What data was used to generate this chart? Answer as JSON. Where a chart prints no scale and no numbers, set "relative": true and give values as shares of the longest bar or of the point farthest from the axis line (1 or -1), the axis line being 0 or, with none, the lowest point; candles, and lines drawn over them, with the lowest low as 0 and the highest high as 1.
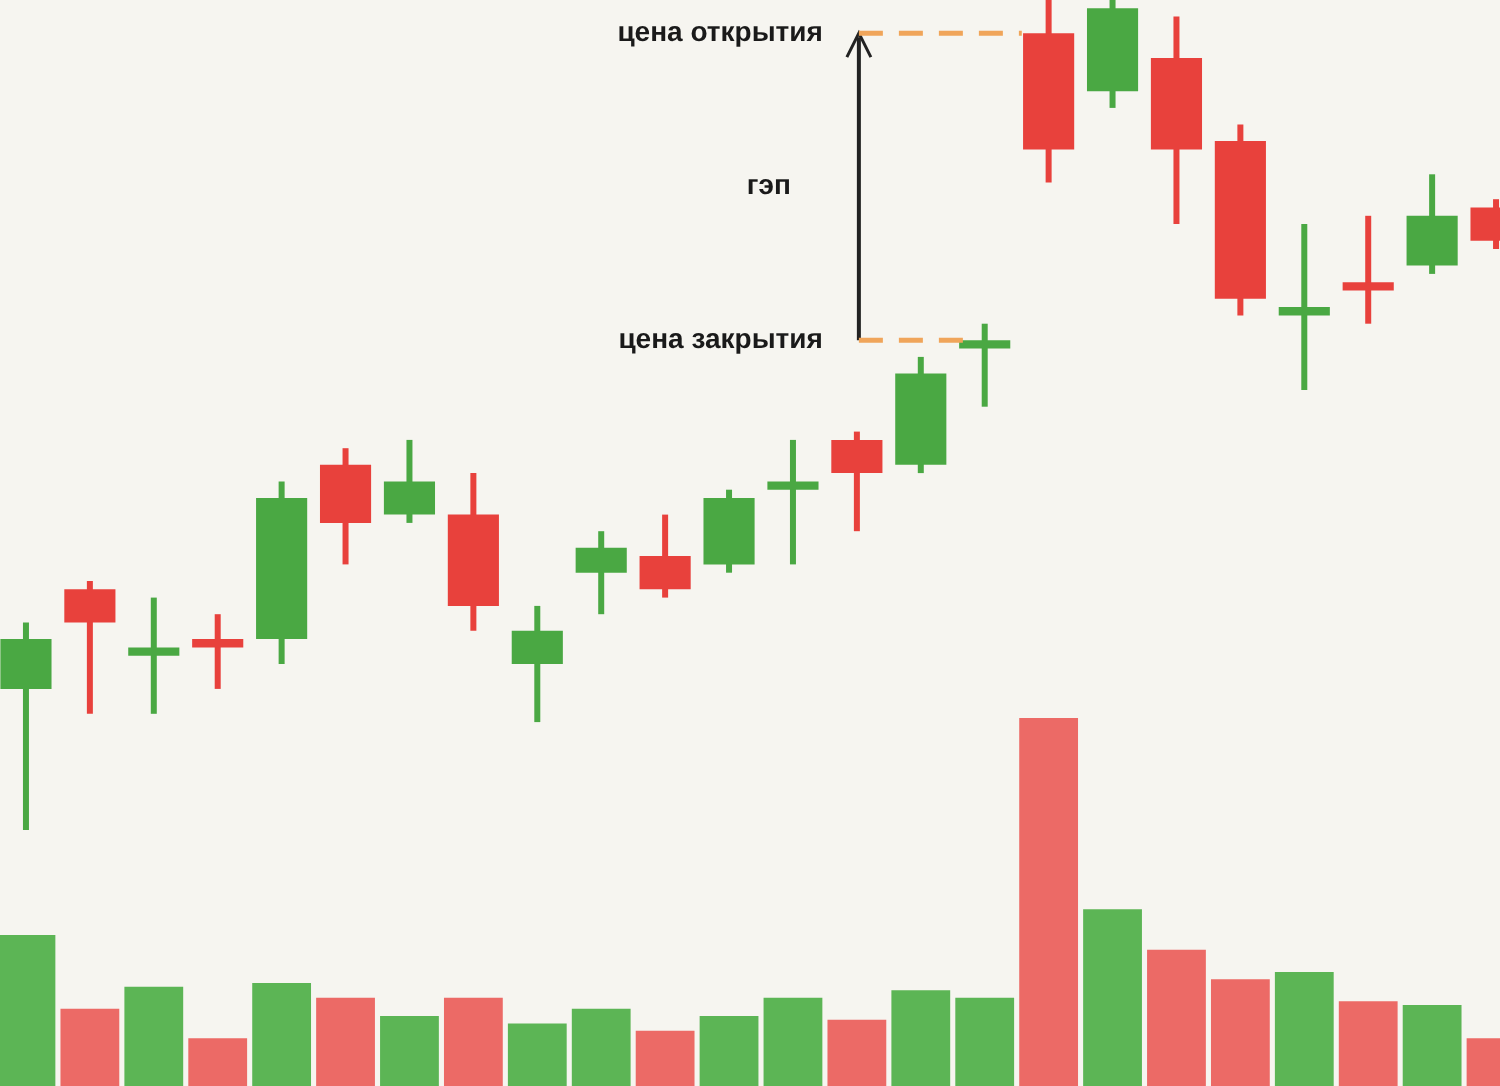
{
  "chart_data": [
    {
      "type": "candlestick",
      "relative": true,
      "categories": [
        null,
        null,
        null,
        null,
        null,
        null,
        null,
        null,
        null,
        null,
        null,
        null,
        null,
        null,
        null,
        null,
        null,
        null,
        null,
        null,
        null,
        null,
        null,
        null
      ],
      "ohlc": [
        [
          0.17,
          0.25,
          0,
          0.23
        ],
        [
          0.29,
          0.3,
          0.14,
          0.25
        ],
        [
          0.21,
          0.28,
          0.14,
          0.22
        ],
        [
          0.23,
          0.26,
          0.17,
          0.22
        ],
        [
          0.23,
          0.42,
          0.2,
          0.4
        ],
        [
          0.44,
          0.46,
          0.32,
          0.37
        ],
        [
          0.38,
          0.47,
          0.37,
          0.42
        ],
        [
          0.38,
          0.43,
          0.24,
          0.27
        ],
        [
          0.2,
          0.27,
          0.13,
          0.24
        ],
        [
          0.31,
          0.36,
          0.26,
          0.34
        ],
        [
          0.33,
          0.38,
          0.28,
          0.29
        ],
        [
          0.32,
          0.41,
          0.31,
          0.4
        ],
        [
          0.41,
          0.47,
          0.32,
          0.42
        ],
        [
          0.47,
          0.48,
          0.36,
          0.43
        ],
        [
          0.44,
          0.57,
          0.43,
          0.55
        ],
        [
          0.58,
          0.61,
          0.51,
          0.59
        ],
        [
          0.96,
          1,
          0.78,
          0.82
        ],
        [
          0.89,
          1,
          0.87,
          0.99
        ],
        [
          0.93,
          0.98,
          0.73,
          0.82
        ],
        [
          0.83,
          0.85,
          0.62,
          0.64
        ],
        [
          0.62,
          0.73,
          0.53,
          0.63
        ],
        [
          0.66,
          0.74,
          0.61,
          0.65
        ],
        [
          0.68,
          0.79,
          0.67,
          0.74
        ],
        [
          0.75,
          0.76,
          0.7,
          0.71
        ]
      ],
      "colors": [
        "#4aa843",
        "#e8413c",
        "#4aa843",
        "#e8413c",
        "#4aa843",
        "#e8413c",
        "#4aa843",
        "#e8413c",
        "#4aa843",
        "#4aa843",
        "#e8413c",
        "#4aa843",
        "#4aa843",
        "#e8413c",
        "#4aa843",
        "#4aa843",
        "#e8413c",
        "#4aa843",
        "#e8413c",
        "#e8413c",
        "#4aa843",
        "#e8413c",
        "#4aa843",
        "#e8413c"
      ],
      "annotations": [
        "цена открытия",
        "гэп",
        "цена закрытия"
      ],
      "legend": false,
      "grid": false
    },
    {
      "type": "bar",
      "relative": true,
      "categories": [
        null,
        null,
        null,
        null,
        null,
        null,
        null,
        null,
        null,
        null,
        null,
        null,
        null,
        null,
        null,
        null,
        null,
        null,
        null,
        null,
        null,
        null,
        null,
        null
      ],
      "values": [
        0.41,
        0.21,
        0.27,
        0.13,
        0.28,
        0.24,
        0.19,
        0.24,
        0.17,
        0.21,
        0.15,
        0.19,
        0.24,
        0.18,
        0.26,
        0.24,
        1,
        0.48,
        0.37,
        0.29,
        0.31,
        0.23,
        0.22,
        0.13
      ],
      "colors": [
        "#5cb555",
        "#ec6a66",
        "#5cb555",
        "#ec6a66",
        "#5cb555",
        "#ec6a66",
        "#5cb555",
        "#ec6a66",
        "#5cb555",
        "#5cb555",
        "#ec6a66",
        "#5cb555",
        "#5cb555",
        "#ec6a66",
        "#5cb555",
        "#5cb555",
        "#ec6a66",
        "#5cb555",
        "#ec6a66",
        "#ec6a66",
        "#5cb555",
        "#ec6a66",
        "#5cb555",
        "#ec6a66"
      ],
      "legend": false,
      "grid": false
    }
  ]
}
